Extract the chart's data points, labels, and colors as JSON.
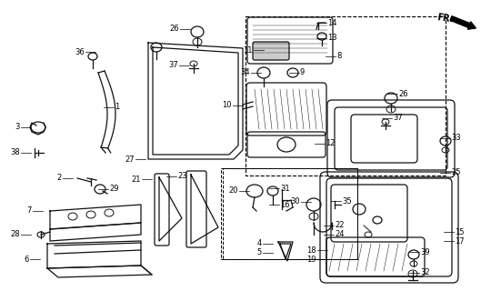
{
  "bg_color": "#ffffff",
  "line_color": "#111111",
  "fig_width": 5.4,
  "fig_height": 3.2,
  "dpi": 100
}
